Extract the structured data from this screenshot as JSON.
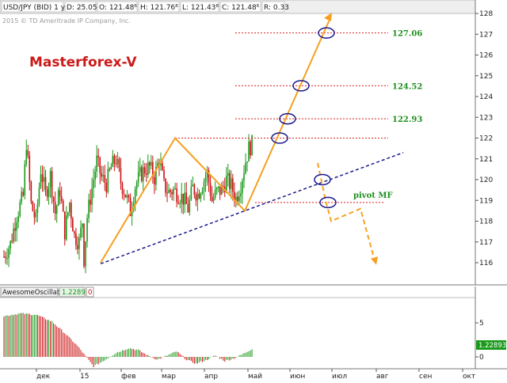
{
  "header": {
    "fields": [
      "USD/JPY (BID) 1 y D",
      "D: 25.05.15",
      "O: 121.48⁶",
      "H: 121.76⁸",
      "L: 121.43⁸",
      "C: 121.48⁶",
      "R: 0.33"
    ],
    "copyright": "2015 © TD Ameritrade IP Company, Inc."
  },
  "watermark": "Masterforex-V",
  "oscillator": {
    "name": "AwesomeOscillator",
    "value": "1.22893",
    "extra": "0",
    "current_label": "1.22893"
  },
  "colors": {
    "price_up": "#1a9a1a",
    "price_down": "#cc1111",
    "pattern": "#f5a021",
    "trend": "#1a1a8c",
    "levels": "#dd2222",
    "level_text": "#1e8f1e",
    "watermark": "#cc1a1a",
    "circle": "#1a1a8c"
  },
  "chart_data": [
    {
      "type": "candlestick",
      "title": "",
      "series_name": "USD/JPY (BID) 1 y D",
      "y_ticks": [
        116,
        117,
        118,
        119,
        120,
        121,
        122,
        123,
        124,
        125,
        126,
        127,
        128
      ],
      "ylim": [
        115.2,
        128.5
      ],
      "x_ticks": [
        "дек",
        "15",
        "фев",
        "мар",
        "апр",
        "май",
        "июн",
        "июл",
        "авг",
        "сен",
        "окт"
      ],
      "price_path": [
        [
          0,
          116.3
        ],
        [
          4,
          116.9
        ],
        [
          8,
          118.3
        ],
        [
          12,
          119.2
        ],
        [
          14,
          121.8
        ],
        [
          17,
          118.8
        ],
        [
          20,
          118.0
        ],
        [
          23,
          120.5
        ],
        [
          26,
          119.3
        ],
        [
          29,
          120.2
        ],
        [
          32,
          118.4
        ],
        [
          35,
          119.5
        ],
        [
          38,
          117.5
        ],
        [
          41,
          118.9
        ],
        [
          44,
          117.3
        ],
        [
          47,
          117.0
        ],
        [
          49,
          118.0
        ],
        [
          50,
          116.2
        ],
        [
          52,
          118.2
        ],
        [
          55,
          119.6
        ],
        [
          58,
          120.9
        ],
        [
          61,
          120.1
        ],
        [
          64,
          119.8
        ],
        [
          67,
          120.6
        ],
        [
          70,
          121.0
        ],
        [
          73,
          119.9
        ],
        [
          76,
          119.3
        ],
        [
          79,
          118.5
        ],
        [
          82,
          119.7
        ],
        [
          85,
          120.2
        ],
        [
          88,
          120.5
        ],
        [
          91,
          120.6
        ],
        [
          94,
          120.1
        ],
        [
          97,
          121.0
        ],
        [
          100,
          119.7
        ],
        [
          103,
          119.4
        ],
        [
          106,
          119.5
        ],
        [
          109,
          119.3
        ],
        [
          112,
          119.1
        ],
        [
          115,
          118.6
        ],
        [
          118,
          119.6
        ],
        [
          121,
          119.3
        ],
        [
          124,
          119.8
        ],
        [
          127,
          120.3
        ],
        [
          130,
          119.0
        ],
        [
          133,
          119.4
        ],
        [
          136,
          119.5
        ],
        [
          139,
          120.0
        ],
        [
          142,
          119.7
        ],
        [
          145,
          119.1
        ],
        [
          148,
          119.8
        ],
        [
          151,
          120.9
        ],
        [
          153,
          121.5
        ],
        [
          155,
          121.7
        ]
      ],
      "pattern_path": [
        [
          121.8,
          1,
          116
        ],
        [
          152.7,
          2,
          122
        ],
        [
          143.1,
          4,
          118.5
        ],
        [
          161,
          1,
          127.7
        ]
      ],
      "levels": [
        {
          "label": "127.06",
          "value": 127.06
        },
        {
          "label": "124.52",
          "value": 124.52
        },
        {
          "label": "122.93",
          "value": 122.93
        },
        {
          "label": "",
          "value": 122.0
        },
        {
          "label": "pivot MF",
          "value": 118.9
        }
      ],
      "trendline": [
        [
          0,
          115.95
        ],
        [
          190,
          121.3
        ]
      ],
      "forecast_down": [
        [
          170,
          120.7
        ],
        [
          173,
          119.2
        ],
        [
          175,
          118.0
        ],
        [
          180,
          118.5
        ],
        [
          187,
          116.0
        ]
      ]
    },
    {
      "type": "bar",
      "title": "",
      "series_name": "AwesomeOscillator",
      "y_ticks": [
        5,
        0
      ],
      "ylim": [
        -2.4,
        7.4
      ],
      "current": 1.22893
    }
  ]
}
